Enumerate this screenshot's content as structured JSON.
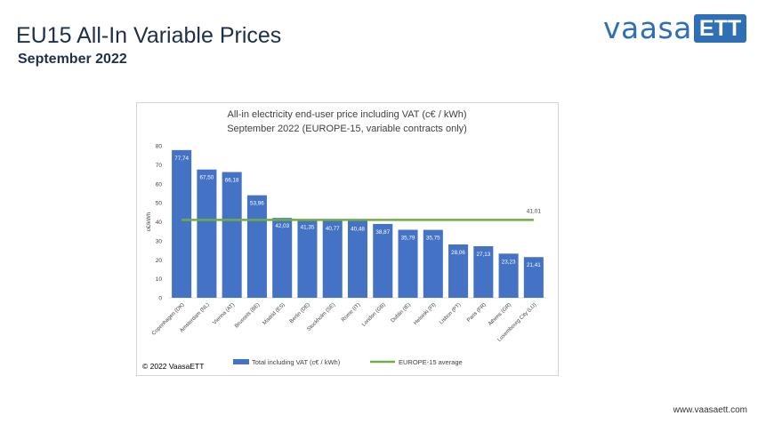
{
  "slide": {
    "title": "EU15 All-In Variable Prices",
    "subtitle": "September 2022",
    "logo_text": "vaasa",
    "logo_badge": "ETT",
    "url": "www.vaasaett.com",
    "copyright": "© 2022 VaasaETT"
  },
  "colors": {
    "bar": "#4472c4",
    "average_line": "#70ad47",
    "brand": "#2e6fb5",
    "title": "#1f2f4a"
  },
  "chart_data": {
    "type": "bar",
    "title_line1": "All-in electricity end-user price including VAT (c€ / kWh)",
    "title_line2": "September 2022 (EUROPE-15, variable contracts only)",
    "ylabel": "c€/kWh",
    "ylim": [
      0,
      80
    ],
    "yticks": [
      0,
      10,
      20,
      30,
      40,
      50,
      60,
      70,
      80
    ],
    "grid": false,
    "categories": [
      "Copenhagen (DK)",
      "Amsterdam (NL)",
      "Vienna (AT)",
      "Brussels (BE)",
      "Madrid (ES)",
      "Berlin (DE)",
      "Stockholm (SE)",
      "Rome (IT)",
      "London (GB)",
      "Dublin (IE)",
      "Helsinki (FI)",
      "Lisbon (PT)",
      "Paris (FR)",
      "Athens (GR)",
      "Luxembourg City (LU)"
    ],
    "series": [
      {
        "name": "Total including VAT (c€ / kWh)",
        "values": [
          77.74,
          67.5,
          66.18,
          53.96,
          42.03,
          41.35,
          40.77,
          40.48,
          38.87,
          35.79,
          35.75,
          28.06,
          27.13,
          23.23,
          21.41
        ],
        "labels": [
          "77,74",
          "67,50",
          "66,18",
          "53,96",
          "42,03",
          "41,35",
          "40,77",
          "40,48",
          "38,87",
          "35,79",
          "35,75",
          "28,06",
          "27,13",
          "23,23",
          "21,41"
        ]
      },
      {
        "name": "EUROPE-15 average",
        "value": 41.01,
        "label": "41,01"
      }
    ],
    "legend_position": "bottom"
  }
}
